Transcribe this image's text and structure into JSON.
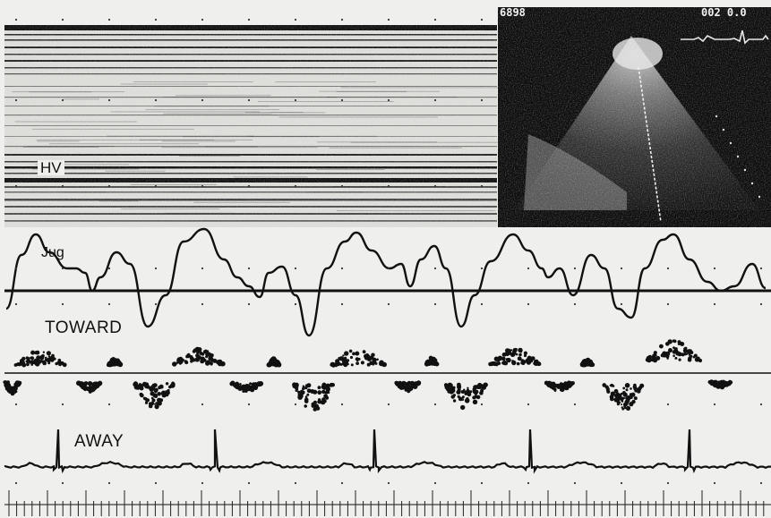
{
  "labels": {
    "hv": "HV",
    "jug": "Jug",
    "toward": "TOWARD",
    "away": "AWAY"
  },
  "echo_screen": {
    "left_text": "6898",
    "right_text": "002 0.0"
  },
  "colors": {
    "paper": "#efefed",
    "ink": "#111111",
    "echo_background": "#0c0c0c"
  }
}
